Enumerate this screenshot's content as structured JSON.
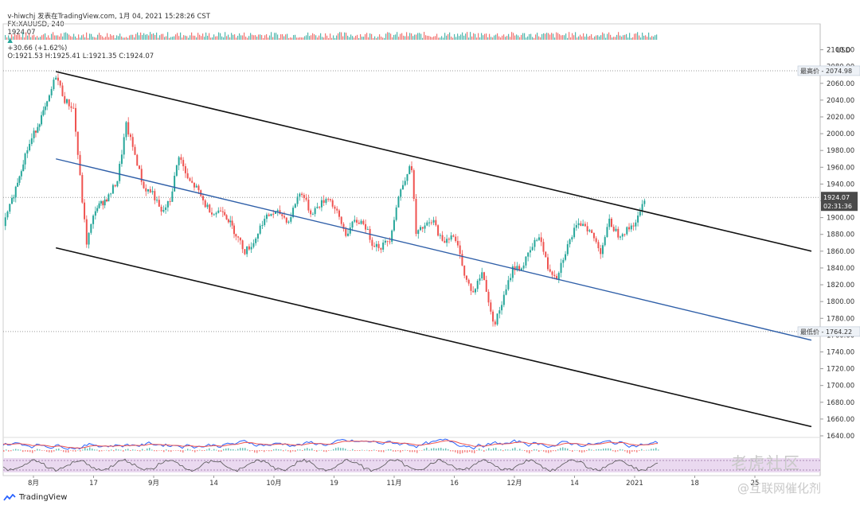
{
  "header": {
    "line1": "v-hiwchj 发表在TradingView.com, 1月 04, 2021 15:28:26 CST",
    "symbol": "FX:XAUUSD, 240",
    "last": "1924.07",
    "arrow": "▲",
    "change": "+30.66 (+1.62%)",
    "ohlc": "O:1921.53 H:1925.41 L:1921.35 C:1924.07"
  },
  "footer": {
    "brand": "TradingView"
  },
  "watermark": {
    "main": "老虎社区",
    "sub": "@互联网催化剂"
  },
  "colors": {
    "up": "#26a69a",
    "down": "#ef5350",
    "channel": "#111111",
    "midline": "#2f5fa8",
    "price_tag": "#4a4a4a"
  },
  "chart_data": {
    "type": "candlestick",
    "symbol": "FX:XAUUSD",
    "interval": "240",
    "currency": "USD",
    "ylim": [
      1640,
      2110
    ],
    "y_ticks": [
      1640,
      1660,
      1680,
      1700,
      1720,
      1740,
      1760,
      1780,
      1800,
      1820,
      1840,
      1860,
      1880,
      1900,
      1920,
      1940,
      1960,
      1980,
      2000,
      2020,
      2040,
      2060,
      2080,
      2100
    ],
    "x_ticks": [
      "8月",
      "17",
      "9月",
      "14",
      "10月",
      "19",
      "11月",
      "16",
      "12月",
      "14",
      "2021",
      "18",
      "25"
    ],
    "price_tags": [
      {
        "label": "最高价",
        "value": "2074.98"
      },
      {
        "label": "",
        "value": "1924.07",
        "countdown": "02:31:36"
      },
      {
        "label": "最低价",
        "value": "1764.22"
      }
    ],
    "path": [
      [
        0,
        1890
      ],
      [
        2,
        1920
      ],
      [
        5,
        1975
      ],
      [
        7,
        2000
      ],
      [
        10,
        2035
      ],
      [
        12,
        2070
      ],
      [
        14,
        2040
      ],
      [
        16,
        2030
      ],
      [
        18,
        1920
      ],
      [
        19,
        1870
      ],
      [
        21,
        1910
      ],
      [
        24,
        1925
      ],
      [
        26,
        1945
      ],
      [
        28,
        2010
      ],
      [
        30,
        1975
      ],
      [
        32,
        1935
      ],
      [
        34,
        1930
      ],
      [
        36,
        1905
      ],
      [
        38,
        1920
      ],
      [
        40,
        1975
      ],
      [
        42,
        1945
      ],
      [
        44,
        1935
      ],
      [
        46,
        1915
      ],
      [
        48,
        1905
      ],
      [
        50,
        1910
      ],
      [
        53,
        1880
      ],
      [
        55,
        1860
      ],
      [
        57,
        1870
      ],
      [
        59,
        1895
      ],
      [
        61,
        1905
      ],
      [
        63,
        1905
      ],
      [
        65,
        1895
      ],
      [
        67,
        1925
      ],
      [
        68,
        1930
      ],
      [
        70,
        1905
      ],
      [
        72,
        1915
      ],
      [
        74,
        1925
      ],
      [
        76,
        1905
      ],
      [
        78,
        1880
      ],
      [
        80,
        1895
      ],
      [
        82,
        1895
      ],
      [
        84,
        1870
      ],
      [
        86,
        1865
      ],
      [
        88,
        1875
      ],
      [
        90,
        1925
      ],
      [
        92,
        1955
      ],
      [
        93,
        1960
      ],
      [
        94,
        1880
      ],
      [
        96,
        1890
      ],
      [
        98,
        1895
      ],
      [
        100,
        1870
      ],
      [
        102,
        1880
      ],
      [
        104,
        1860
      ],
      [
        105,
        1830
      ],
      [
        107,
        1810
      ],
      [
        109,
        1835
      ],
      [
        110,
        1815
      ],
      [
        111,
        1785
      ],
      [
        112,
        1775
      ],
      [
        114,
        1805
      ],
      [
        116,
        1840
      ],
      [
        118,
        1840
      ],
      [
        120,
        1860
      ],
      [
        122,
        1880
      ],
      [
        124,
        1840
      ],
      [
        126,
        1830
      ],
      [
        128,
        1860
      ],
      [
        130,
        1885
      ],
      [
        132,
        1895
      ],
      [
        134,
        1880
      ],
      [
        136,
        1860
      ],
      [
        138,
        1895
      ],
      [
        140,
        1880
      ],
      [
        142,
        1885
      ],
      [
        144,
        1895
      ],
      [
        145,
        1905
      ],
      [
        146,
        1924
      ]
    ],
    "channel": {
      "upper": {
        "x": [
          12,
          184
        ],
        "y": [
          2074,
          1860
        ]
      },
      "middle": {
        "x": [
          12,
          184
        ],
        "y": [
          1970,
          1754
        ]
      },
      "lower": {
        "x": [
          12,
          184
        ],
        "y": [
          1864,
          1651
        ]
      }
    },
    "horizontal_levels": [
      2074.98,
      1924.07,
      1764.22
    ],
    "volume_strip": true,
    "indicators": [
      "macd",
      "stochastic"
    ]
  }
}
